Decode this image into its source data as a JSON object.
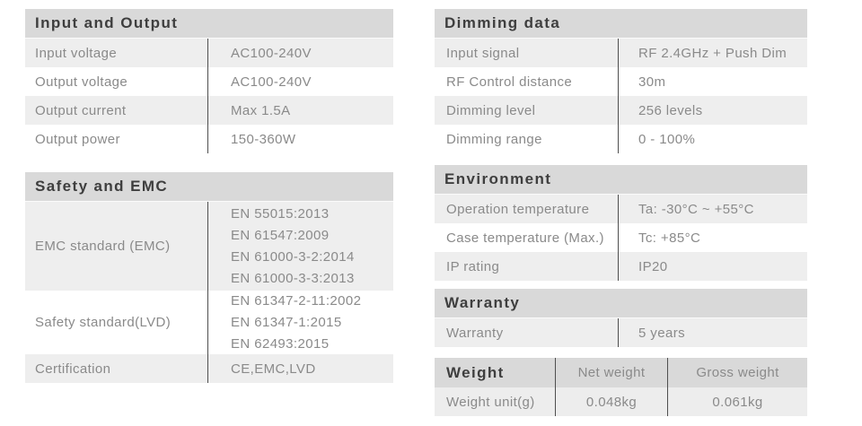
{
  "colors": {
    "header_bg": "#d9d9d9",
    "row_alt_bg": "#eeeeee",
    "row_bg": "#ffffff",
    "header_text": "#3e3e3e",
    "cell_text": "#8a8a8a",
    "divider": "#4f4f4f"
  },
  "tables": {
    "input_output": {
      "title": "Input and Output",
      "rows": [
        {
          "label": "Input voltage",
          "value": "AC100-240V"
        },
        {
          "label": "Output voltage",
          "value": "AC100-240V"
        },
        {
          "label": "Output current",
          "value": "Max 1.5A"
        },
        {
          "label": "Output power",
          "value": "150-360W"
        }
      ]
    },
    "safety_emc": {
      "title": "Safety and EMC",
      "rows": [
        {
          "label": "EMC standard (EMC)",
          "value_lines": [
            "EN 55015:2013",
            "EN 61547:2009",
            "EN 61000-3-2:2014",
            "EN 61000-3-3:2013"
          ]
        },
        {
          "label": "Safety standard(LVD)",
          "value_lines": [
            "EN 61347-2-11:2002",
            "EN 61347-1:2015",
            "EN 62493:2015"
          ]
        },
        {
          "label": "Certification",
          "value": "CE,EMC,LVD"
        }
      ]
    },
    "dimming": {
      "title": "Dimming data",
      "rows": [
        {
          "label": "Input signal",
          "value": "RF 2.4GHz + Push Dim"
        },
        {
          "label": "RF Control distance",
          "value": "30m"
        },
        {
          "label": "Dimming level",
          "value": "256 levels"
        },
        {
          "label": "Dimming range",
          "value": "0 - 100%"
        }
      ]
    },
    "environment": {
      "title": "Environment",
      "rows": [
        {
          "label": "Operation temperature",
          "value": "Ta: -30°C ~ +55°C"
        },
        {
          "label": "Case temperature (Max.)",
          "value": "Tc: +85°C"
        },
        {
          "label": "IP rating",
          "value": "IP20"
        }
      ]
    },
    "warranty": {
      "title": "Warranty",
      "rows": [
        {
          "label": "Warranty",
          "value": "5 years"
        }
      ]
    },
    "weight": {
      "title": "Weight",
      "columns": [
        "Net weight",
        "Gross weight"
      ],
      "rows": [
        {
          "label": "Weight unit(g)",
          "values": [
            "0.048kg",
            "0.061kg"
          ]
        }
      ]
    }
  }
}
